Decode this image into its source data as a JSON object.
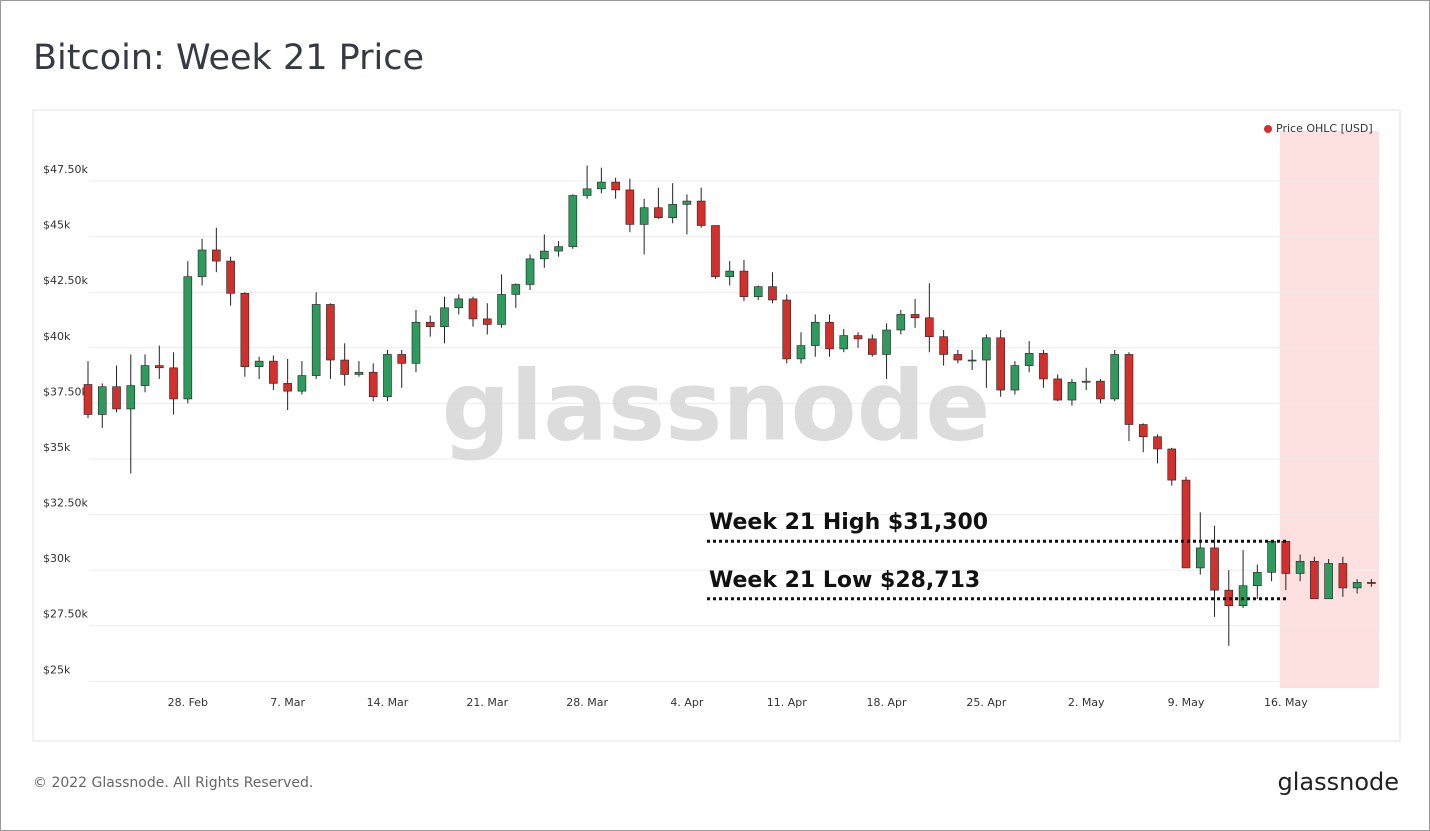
{
  "chart_data": {
    "type": "candlestick",
    "title": "Bitcoin: Week 21 Price",
    "watermark": "glassnode",
    "footer": "© 2022 Glassnode. All Rights Reserved.",
    "logo": "glassnode",
    "categories": [
      null,
      null,
      null,
      null,
      null,
      null,
      null,
      "28. Feb",
      null,
      null,
      null,
      null,
      null,
      null,
      "7. Mar",
      null,
      null,
      null,
      null,
      null,
      null,
      "14. Mar",
      null,
      null,
      null,
      null,
      null,
      null,
      "21. Mar",
      null,
      null,
      null,
      null,
      null,
      null,
      "28. Mar",
      null,
      null,
      null,
      null,
      null,
      null,
      "4. Apr",
      null,
      null,
      null,
      null,
      null,
      null,
      "11. Apr",
      null,
      null,
      null,
      null,
      null,
      null,
      "18. Apr",
      null,
      null,
      null,
      null,
      null,
      null,
      "25. Apr",
      null,
      null,
      null,
      null,
      null,
      null,
      "2. May",
      null,
      null,
      null,
      null,
      null,
      null,
      "9. May",
      null,
      null,
      null,
      null,
      null,
      null,
      "16. May",
      null,
      null,
      null,
      null,
      null,
      null
    ],
    "series": [
      {
        "name": "Price OHLC [USD]",
        "color": "#d0312d",
        "up_color": "#2e9a5c",
        "open": [
          38350,
          37000,
          38250,
          37250,
          38300,
          39200,
          39100,
          37700,
          43200,
          44400,
          43900,
          42450,
          39150,
          39400,
          38400,
          38050,
          38750,
          41950,
          39450,
          38800,
          38900,
          37800,
          39700,
          39300,
          41150,
          40950,
          41800,
          42200,
          41300,
          41050,
          42400,
          42850,
          44000,
          44350,
          44550,
          46850,
          47150,
          47450,
          47100,
          45550,
          46300,
          45850,
          46450,
          46600,
          45500,
          43200,
          43450,
          42300,
          42750,
          42150,
          39500,
          40100,
          41150,
          39950,
          40550,
          40400,
          39700,
          40800,
          41500,
          41350,
          40500,
          39700,
          39450,
          39450,
          40450,
          38100,
          39200,
          39750,
          38600,
          37650,
          38450,
          38500,
          37700,
          39700,
          36550,
          36000,
          35450,
          34050,
          30100,
          31000,
          29100,
          28400,
          29300,
          29900,
          31300,
          29850,
          30400,
          28713,
          30300,
          29200,
          29450
        ],
        "high": [
          39400,
          38400,
          39200,
          39700,
          39700,
          40100,
          39800,
          43900,
          44900,
          45400,
          44100,
          42500,
          39600,
          39650,
          39500,
          39400,
          42500,
          42000,
          40200,
          39400,
          39300,
          39900,
          39900,
          41700,
          41450,
          42300,
          42400,
          42300,
          42000,
          43300,
          42900,
          44200,
          45100,
          44800,
          46900,
          48200,
          48100,
          47650,
          47600,
          46700,
          47200,
          47400,
          46900,
          47200,
          45500,
          43900,
          43950,
          42800,
          43400,
          42400,
          40700,
          41500,
          41500,
          40850,
          40700,
          40600,
          41100,
          41700,
          42200,
          42900,
          40800,
          39900,
          39900,
          40600,
          40800,
          39400,
          40300,
          39900,
          38800,
          38600,
          39100,
          38600,
          39900,
          39800,
          36600,
          36100,
          35500,
          34200,
          32600,
          32000,
          30000,
          30900,
          30250,
          31300,
          31300,
          30700,
          30600,
          30500,
          30600,
          29600,
          29600
        ],
        "low": [
          36850,
          36400,
          37100,
          34350,
          38000,
          38600,
          37000,
          37500,
          42800,
          43400,
          41900,
          38700,
          38600,
          38100,
          37200,
          37900,
          38600,
          38600,
          38300,
          38700,
          37600,
          37600,
          38200,
          38900,
          40500,
          40200,
          41500,
          40950,
          40600,
          40900,
          41800,
          42600,
          43600,
          44100,
          44450,
          46700,
          46950,
          46700,
          45200,
          44200,
          45800,
          45600,
          45100,
          45400,
          43100,
          42800,
          42100,
          42150,
          42000,
          39300,
          39300,
          39600,
          39600,
          39800,
          40000,
          39600,
          38600,
          40600,
          40900,
          39800,
          39200,
          39300,
          39000,
          38200,
          37800,
          37900,
          38900,
          38200,
          37600,
          37400,
          38100,
          37500,
          37600,
          35800,
          35300,
          34800,
          33800,
          30100,
          29800,
          27900,
          26600,
          28300,
          28700,
          29500,
          29100,
          29500,
          28713,
          28713,
          28800,
          28950,
          29250
        ],
        "close": [
          37000,
          38250,
          37250,
          38300,
          39200,
          39100,
          37700,
          43200,
          44400,
          43900,
          42450,
          39150,
          39400,
          38400,
          38050,
          38750,
          41950,
          39450,
          38800,
          38900,
          37800,
          39700,
          39300,
          41150,
          40950,
          41800,
          42200,
          41300,
          41050,
          42400,
          42850,
          44000,
          44350,
          44550,
          46850,
          47150,
          47450,
          47100,
          45550,
          46300,
          45850,
          46450,
          46600,
          45500,
          43200,
          43450,
          42300,
          42750,
          42150,
          39500,
          40100,
          41150,
          39950,
          40550,
          40400,
          39700,
          40800,
          41500,
          41350,
          40500,
          39700,
          39450,
          39450,
          40450,
          38100,
          39200,
          39750,
          38600,
          37650,
          38450,
          38500,
          37700,
          39700,
          36550,
          36000,
          35450,
          34050,
          30100,
          31000,
          29100,
          28400,
          29300,
          29900,
          31300,
          29850,
          30400,
          28713,
          30300,
          29200,
          29450,
          29400
        ]
      }
    ],
    "ylim": [
      24700,
      49750
    ],
    "yticks": [
      {
        "value": 25000,
        "label": "$25k"
      },
      {
        "value": 27500,
        "label": "$27.50k"
      },
      {
        "value": 30000,
        "label": "$30k"
      },
      {
        "value": 32500,
        "label": "$32.50k"
      },
      {
        "value": 35000,
        "label": "$35k"
      },
      {
        "value": 37500,
        "label": "$37.50k"
      },
      {
        "value": 40000,
        "label": "$40k"
      },
      {
        "value": 42500,
        "label": "$42.50k"
      },
      {
        "value": 45000,
        "label": "$45k"
      },
      {
        "value": 47500,
        "label": "$47.50k"
      }
    ],
    "grid": true,
    "legend": "top-right",
    "annotations": [
      {
        "text": "Week 21 High $31,300",
        "value": 31300
      },
      {
        "text": "Week 21 Low $28,713",
        "value": 28713
      }
    ]
  }
}
